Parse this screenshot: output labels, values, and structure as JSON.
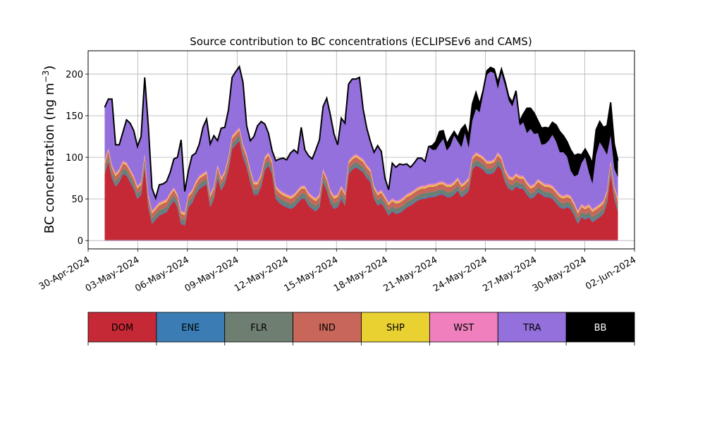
{
  "chart_data": {
    "type": "area",
    "title": "Source contribution to BC concentrations (ECLIPSEv6 and CAMS)",
    "ylabel": "BC concentration (ng m",
    "ylabel_sup": "−3",
    "ylabel_close": ")",
    "xlabel": "",
    "x_start": "2024-05-01",
    "x_end": "2024-06-01",
    "xlim": [
      "2024-04-30T00:00",
      "2024-06-02T00:00"
    ],
    "ylim": [
      -10,
      228
    ],
    "yticks": [
      0,
      50,
      100,
      150,
      200
    ],
    "xtick_labels": [
      "30-Apr-2024",
      "03-May-2024",
      "06-May-2024",
      "09-May-2024",
      "12-May-2024",
      "15-May-2024",
      "18-May-2024",
      "21-May-2024",
      "24-May-2024",
      "27-May-2024",
      "30-May-2024",
      "02-Jun-2024"
    ],
    "grid": true,
    "stacked": true,
    "legend_position": "below",
    "series_names": [
      "DOM",
      "ENE",
      "FLR",
      "IND",
      "SHP",
      "WST",
      "TRA",
      "BB"
    ],
    "series_colors": [
      "#c62936",
      "#3a7cb3",
      "#6e7e70",
      "#c9665a",
      "#e8d131",
      "#ef80bd",
      "#9370db",
      "#000000"
    ],
    "series_text_colors": [
      "#000000",
      "#000000",
      "#000000",
      "#000000",
      "#000000",
      "#000000",
      "#000000",
      "#ffffff"
    ],
    "dom_values": [
      80,
      95,
      75,
      65,
      70,
      80,
      78,
      70,
      62,
      50,
      55,
      88,
      40,
      20,
      25,
      30,
      32,
      34,
      42,
      48,
      40,
      20,
      18,
      40,
      45,
      55,
      62,
      65,
      68,
      40,
      50,
      75,
      60,
      68,
      85,
      110,
      115,
      120,
      100,
      88,
      70,
      55,
      55,
      65,
      85,
      90,
      80,
      50,
      45,
      42,
      40,
      38,
      40,
      45,
      50,
      50,
      42,
      38,
      35,
      40,
      70,
      60,
      45,
      38,
      40,
      50,
      42,
      80,
      85,
      88,
      85,
      82,
      75,
      70,
      50,
      42,
      45,
      38,
      30,
      35,
      32,
      33,
      36,
      40,
      42,
      45,
      48,
      50,
      50,
      52,
      52,
      53,
      55,
      55,
      52,
      52,
      55,
      60,
      52,
      55,
      60,
      85,
      90,
      88,
      85,
      80,
      80,
      82,
      90,
      85,
      70,
      62,
      60,
      65,
      62,
      62,
      55,
      50,
      52,
      58,
      55,
      52,
      52,
      50,
      45,
      40,
      38,
      40,
      38,
      30,
      20,
      28,
      25,
      28,
      22,
      25,
      28,
      32,
      45,
      80,
      50,
      35
    ],
    "ene_values": [
      1.5,
      1.5,
      1.5,
      1.5,
      1.5,
      1.5,
      1.5,
      1.5,
      1.5,
      1.5,
      1.5,
      1.5,
      1.5,
      1.5,
      1.5,
      1.5,
      1.5,
      1.5,
      1.5,
      1.5,
      1.5,
      1.5,
      1.5,
      1.5,
      1.5,
      1.5,
      1.5,
      1.5,
      1.5,
      1.5,
      1.5,
      1.5,
      1.5,
      1.5,
      1.5,
      1.5,
      1.5,
      1.5,
      1.5,
      1.5,
      1.5,
      1.5,
      1.5,
      1.5,
      1.5,
      1.5,
      1.5,
      1.5,
      1.5,
      1.5,
      1.5,
      1.5,
      1.5,
      1.5,
      1.5,
      1.5,
      1.5,
      1.5,
      1.5,
      1.5,
      1.5,
      1.5,
      1.5,
      1.5,
      1.5,
      1.5,
      1.5,
      1.5,
      1.5,
      1.5,
      1.5,
      1.5,
      1.5,
      1.5,
      1.5,
      1.5,
      1.5,
      1.5,
      1.5,
      1.5,
      1.5,
      1.5,
      1.5,
      1.5,
      1.5,
      1.5,
      1.5,
      1.5,
      1.5,
      1.5,
      1.5,
      1.5,
      1.5,
      1.5,
      1.5,
      1.5,
      1.5,
      1.5,
      1.5,
      1.5,
      1.5,
      1.5,
      1.5,
      1.5,
      1.5,
      1.5,
      1.5,
      1.5,
      1.5,
      1.5,
      1.5,
      1.5,
      1.5,
      1.5,
      1.5,
      1.5,
      1.5,
      1.5,
      1.5,
      1.5,
      1.5,
      1.5,
      1.5,
      1.5,
      1.5,
      1.5,
      1.5,
      1.5,
      1.5,
      1.5,
      1.5,
      1.5,
      1.5,
      1.5,
      1.5,
      1.5,
      1.5,
      1.5,
      1.5,
      1.5,
      1.5,
      1.5
    ],
    "flr_values": [
      5,
      5,
      5,
      5,
      5,
      5,
      5,
      5,
      5,
      5,
      5,
      5,
      5,
      5,
      5,
      5,
      5,
      5,
      5,
      5,
      5,
      5,
      5,
      5,
      5,
      5,
      5,
      5,
      5,
      5,
      5,
      5,
      5,
      5,
      5,
      5,
      5,
      5,
      5,
      5,
      5,
      5,
      5,
      5,
      5,
      5,
      5,
      5,
      5,
      5,
      5,
      5,
      5,
      5,
      5,
      5,
      5,
      5,
      5,
      5,
      5,
      5,
      5,
      5,
      5,
      5,
      5,
      5,
      5,
      5,
      5,
      5,
      5,
      5,
      5,
      5,
      5,
      5,
      5,
      5,
      5,
      5,
      5,
      5,
      5,
      5,
      5,
      5,
      5,
      5,
      5,
      5,
      5,
      5,
      5,
      5,
      5,
      5,
      5,
      5,
      5,
      5,
      5,
      5,
      5,
      5,
      5,
      5,
      5,
      5,
      5,
      5,
      5,
      5,
      5,
      5,
      5,
      5,
      5,
      5,
      5,
      5,
      5,
      5,
      5,
      5,
      5,
      5,
      5,
      5,
      5,
      5,
      5,
      5,
      5,
      5,
      5,
      5,
      5,
      5,
      5,
      5
    ],
    "ind_values": [
      6,
      6,
      6,
      6,
      6,
      6,
      6,
      6,
      6,
      6,
      6,
      6,
      6,
      6,
      6,
      6,
      6,
      6,
      6,
      6,
      6,
      6,
      6,
      6,
      6,
      6,
      6,
      6,
      6,
      6,
      6,
      6,
      6,
      6,
      6,
      6,
      6,
      6,
      6,
      6,
      6,
      6,
      6,
      6,
      6,
      6,
      6,
      6,
      6,
      6,
      6,
      6,
      6,
      6,
      6,
      6,
      6,
      6,
      6,
      6,
      6,
      6,
      6,
      6,
      6,
      6,
      6,
      6,
      6,
      6,
      6,
      6,
      6,
      6,
      6,
      6,
      6,
      6,
      6,
      6,
      6,
      6,
      6,
      6,
      6,
      6,
      6,
      6,
      6,
      6,
      6,
      6,
      6,
      6,
      6,
      6,
      6,
      6,
      6,
      6,
      6,
      6,
      6,
      6,
      6,
      6,
      6,
      6,
      6,
      6,
      6,
      6,
      6,
      6,
      6,
      6,
      6,
      6,
      6,
      6,
      6,
      6,
      6,
      6,
      6,
      6,
      6,
      6,
      6,
      6,
      6,
      6,
      6,
      6,
      6,
      6,
      6,
      6,
      6,
      6,
      6,
      6
    ],
    "shp_values": [
      1.5,
      1.5,
      1.5,
      1.5,
      1.5,
      1.5,
      1.5,
      1.5,
      1.5,
      1.5,
      1.5,
      1.5,
      1.5,
      1.5,
      1.5,
      1.5,
      1.5,
      1.5,
      1.5,
      1.5,
      1.5,
      1.5,
      1.5,
      1.5,
      1.5,
      1.5,
      1.5,
      1.5,
      1.5,
      1.5,
      1.5,
      1.5,
      1.5,
      1.5,
      1.5,
      1.5,
      1.5,
      1.5,
      1.5,
      1.5,
      1.5,
      1.5,
      1.5,
      1.5,
      1.5,
      1.5,
      1.5,
      1.5,
      1.5,
      1.5,
      1.5,
      1.5,
      1.5,
      1.5,
      1.5,
      1.5,
      1.5,
      1.5,
      1.5,
      1.5,
      1.5,
      1.5,
      1.5,
      1.5,
      1.5,
      1.5,
      1.5,
      1.5,
      1.5,
      1.5,
      1.5,
      1.5,
      1.5,
      1.5,
      1.5,
      1.5,
      1.5,
      1.5,
      1.5,
      1.5,
      1.5,
      1.5,
      1.5,
      1.5,
      1.5,
      1.5,
      1.5,
      1.5,
      1.5,
      1.5,
      1.5,
      1.5,
      1.5,
      1.5,
      1.5,
      1.5,
      1.5,
      1.5,
      1.5,
      1.5,
      1.5,
      1.5,
      1.5,
      1.5,
      1.5,
      1.5,
      1.5,
      1.5,
      1.5,
      1.5,
      1.5,
      1.5,
      1.5,
      1.5,
      1.5,
      1.5,
      1.5,
      1.5,
      1.5,
      1.5,
      1.5,
      1.5,
      1.5,
      1.5,
      1.5,
      1.5,
      1.5,
      1.5,
      1.5,
      1.5,
      1.5,
      1.5,
      1.5,
      1.5,
      1.5,
      1.5,
      1.5,
      1.5,
      1.5,
      1.5,
      1.5,
      1.5
    ],
    "wst_values": [
      2,
      2,
      2,
      2,
      2,
      2,
      2,
      2,
      2,
      2,
      2,
      2,
      2,
      2,
      2,
      2,
      2,
      2,
      2,
      2,
      2,
      2,
      2,
      2,
      2,
      2,
      2,
      2,
      2,
      2,
      2,
      2,
      2,
      2,
      2,
      2,
      2,
      2,
      2,
      2,
      2,
      2,
      2,
      2,
      2,
      2,
      2,
      2,
      2,
      2,
      2,
      2,
      2,
      2,
      2,
      2,
      2,
      2,
      2,
      2,
      2,
      2,
      2,
      2,
      2,
      2,
      2,
      2,
      2,
      2,
      2,
      2,
      2,
      2,
      2,
      2,
      2,
      2,
      2,
      2,
      2,
      2,
      2,
      2,
      2,
      2,
      2,
      2,
      2,
      2,
      2,
      2,
      2,
      2,
      2,
      2,
      2,
      2,
      2,
      2,
      2,
      2,
      2,
      2,
      2,
      2,
      2,
      2,
      2,
      2,
      2,
      2,
      2,
      2,
      2,
      2,
      2,
      2,
      2,
      2,
      2,
      2,
      2,
      2,
      2,
      2,
      2,
      2,
      2,
      2,
      2,
      2,
      2,
      2,
      2,
      2,
      2,
      2,
      2,
      2,
      2,
      2
    ],
    "tra_values": [
      64,
      59,
      79,
      34,
      29,
      34,
      51,
      55,
      54,
      47,
      54,
      92,
      81,
      27,
      10,
      21,
      20,
      21,
      24,
      34,
      44,
      85,
      25,
      28,
      41,
      34,
      38,
      55,
      62,
      60,
      60,
      29,
      59,
      52,
      56,
      70,
      72,
      73,
      74,
      34,
      34,
      54,
      67,
      62,
      39,
      23,
      12,
      30,
      37,
      41,
      41,
      51,
      53,
      44,
      70,
      43,
      44,
      44,
      58,
      65,
      75,
      95,
      90,
      74,
      59,
      81,
      83,
      92,
      93,
      90,
      95,
      60,
      44,
      33,
      40,
      56,
      46,
      21,
      15,
      42,
      40,
      43,
      39,
      36,
      30,
      32,
      35,
      33,
      29,
      45,
      41,
      40,
      45,
      51,
      40,
      46,
      55,
      43,
      44,
      58,
      35,
      43,
      52,
      50,
      75,
      103,
      107,
      103,
      76,
      100,
      100,
      90,
      85,
      94,
      60,
      64,
      58,
      68,
      60,
      55,
      44,
      48,
      52,
      61,
      58,
      50,
      52,
      45,
      30,
      31,
      43,
      49,
      59,
      38,
      30,
      62,
      74,
      63,
      42,
      30,
      20,
      25
    ],
    "bb_values": [
      0,
      0,
      0,
      0,
      0,
      0,
      0,
      0,
      0,
      0,
      0,
      0,
      0,
      0,
      0,
      0,
      0,
      0,
      0,
      0,
      0,
      0,
      0,
      0,
      0,
      0,
      0,
      0,
      0,
      0,
      0,
      0,
      0,
      0,
      0,
      0,
      0,
      0,
      0,
      0,
      0,
      0,
      0,
      0,
      0,
      0,
      0,
      0,
      0,
      0,
      0,
      0,
      0,
      0,
      0,
      0,
      0,
      0,
      0,
      0,
      0,
      0,
      0,
      0,
      0,
      0,
      0,
      0,
      0,
      0,
      0,
      0,
      0,
      0,
      0,
      0,
      0,
      0,
      0,
      0,
      0,
      0,
      0,
      0,
      0,
      0,
      0,
      0,
      0,
      0,
      5,
      10,
      15,
      10,
      8,
      10,
      5,
      5,
      22,
      10,
      15,
      20,
      20,
      10,
      5,
      5,
      5,
      5,
      8,
      5,
      5,
      5,
      5,
      5,
      5,
      10,
      30,
      25,
      25,
      15,
      20,
      20,
      15,
      15,
      20,
      25,
      20,
      18,
      25,
      25,
      25,
      10,
      10,
      20,
      25,
      30,
      25,
      25,
      35,
      40,
      30,
      20
    ]
  }
}
